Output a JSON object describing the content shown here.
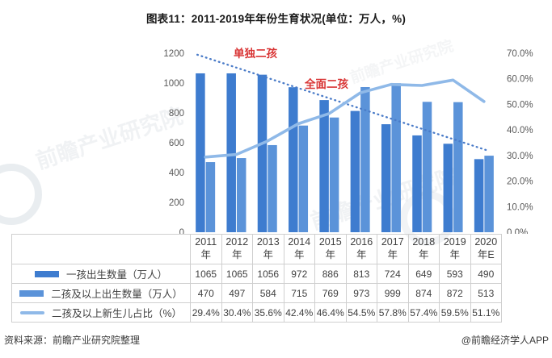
{
  "title": "图表11：2011-2019年年份生育状况(单位：万人，%)",
  "chart_data": {
    "type": "bar",
    "categories": [
      "2011年",
      "2012年",
      "2013年",
      "2014年",
      "2015年",
      "2016年",
      "2017年",
      "2018年",
      "2019年",
      "2020年E"
    ],
    "series": [
      {
        "name": "一孩出生数量（万人）",
        "type": "bar",
        "axis": "left",
        "color": "#3E7CCF",
        "values": [
          1065,
          1065,
          1056,
          972,
          886,
          813,
          724,
          649,
          593,
          490
        ]
      },
      {
        "name": "二孩及以上出生数量（万人）",
        "type": "bar",
        "axis": "left",
        "color": "#5B93D9",
        "values": [
          470,
          497,
          584,
          715,
          769,
          973,
          999,
          874,
          872,
          513
        ]
      },
      {
        "name": "二孩及以上新生儿占比（%）",
        "type": "line",
        "axis": "right",
        "color": "#8FB9E8",
        "values": [
          29.4,
          30.4,
          35.6,
          42.4,
          46.4,
          54.5,
          57.8,
          57.4,
          59.5,
          51.1
        ]
      }
    ],
    "left_axis": {
      "min": 0,
      "max": 1200,
      "step": 200,
      "values": [
        0,
        200,
        400,
        600,
        800,
        1000,
        1200
      ],
      "ticks": [
        "0",
        "200",
        "400",
        "600",
        "800",
        "1000",
        "1200"
      ]
    },
    "right_axis": {
      "min": 0,
      "max": 70,
      "step": 10,
      "values": [
        0,
        10,
        20,
        30,
        40,
        50,
        60,
        70
      ],
      "ticks": [
        "0.0%",
        "10.0%",
        "20.0%",
        "30.0%",
        "40.0%",
        "50.0%",
        "60.0%",
        "70.0%"
      ]
    },
    "annotations": [
      {
        "text": "单独二孩"
      },
      {
        "text": "全面二孩"
      }
    ],
    "annotation_color": "#D93636",
    "trendline": {
      "style": "dotted",
      "color": "#4A7BC8",
      "start_value": 1190,
      "end_value": 545
    },
    "grid": false,
    "legend_position": "table-left"
  },
  "table": {
    "years": [
      [
        "2011",
        "年"
      ],
      [
        "2012",
        "年"
      ],
      [
        "2013",
        "年"
      ],
      [
        "2014",
        "年"
      ],
      [
        "2015",
        "年"
      ],
      [
        "2016",
        "年"
      ],
      [
        "2017",
        "年"
      ],
      [
        "2018",
        "年"
      ],
      [
        "2019",
        "年"
      ],
      [
        "2020",
        "年E"
      ]
    ],
    "rows": [
      {
        "label": "一孩出生数量（万人）",
        "swatch": "bar",
        "swatch_color": "#3E7CCF",
        "values": [
          "1065",
          "1065",
          "1056",
          "972",
          "886",
          "813",
          "724",
          "649",
          "593",
          "490"
        ]
      },
      {
        "label": "二孩及以上出生数量（万人）",
        "swatch": "bar",
        "swatch_color": "#5B93D9",
        "values": [
          "470",
          "497",
          "584",
          "715",
          "769",
          "973",
          "999",
          "874",
          "872",
          "513"
        ]
      },
      {
        "label": "二孩及以上新生儿占比（%）",
        "swatch": "line",
        "swatch_color": "#8FB9E8",
        "values": [
          "29.4%",
          "30.4%",
          "35.6%",
          "42.4%",
          "46.4%",
          "54.5%",
          "57.8%",
          "57.4%",
          "59.5%",
          "51.1%"
        ]
      }
    ]
  },
  "footer": {
    "source": "资料来源：前瞻产业研究院整理",
    "credit": "@前瞻经济学人APP"
  },
  "watermark": {
    "text": "前瞻产业研究院"
  }
}
